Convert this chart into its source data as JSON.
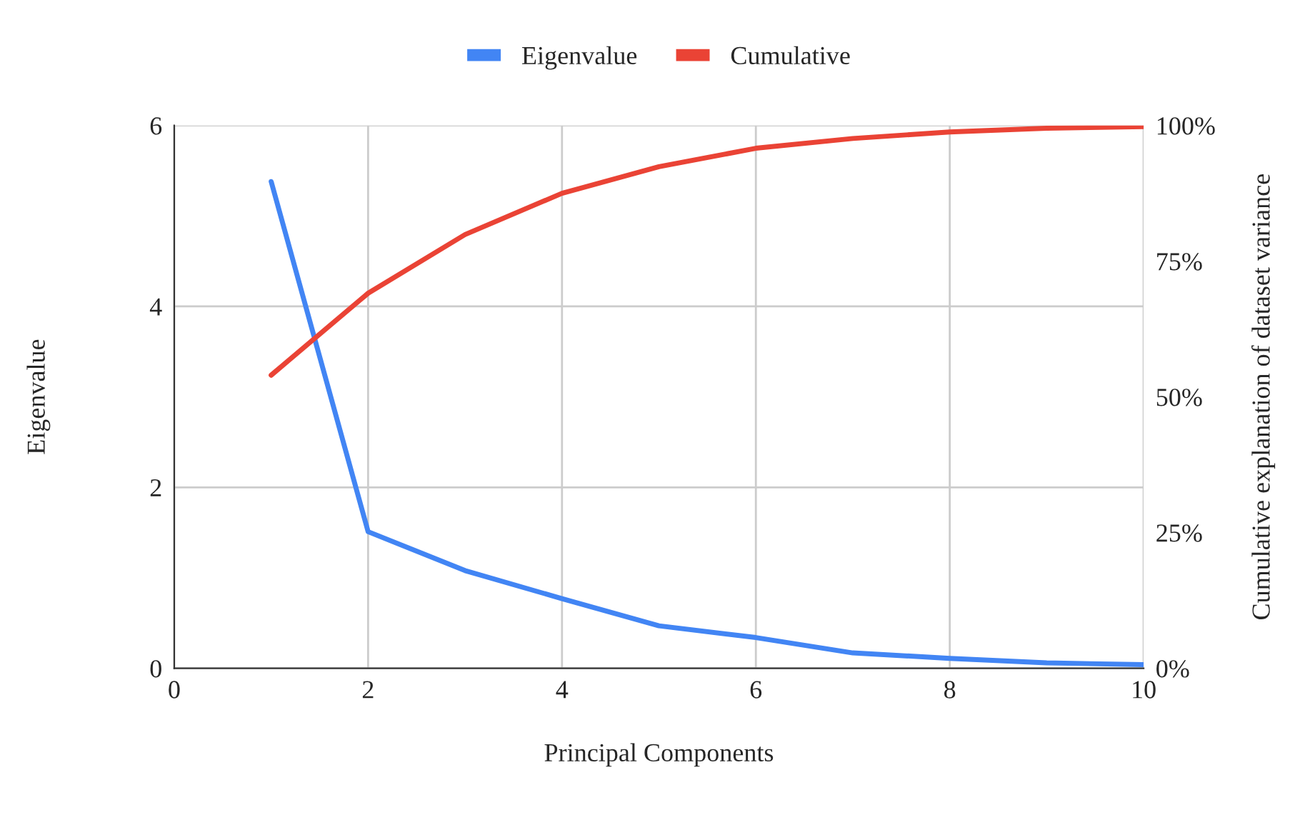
{
  "chart_data": {
    "type": "line",
    "xlabel": "Principal Components",
    "ylabel": "Eigenvalue",
    "y2label": "Cumulative explanation of dataset variance",
    "x": [
      1,
      2,
      3,
      4,
      5,
      6,
      7,
      8,
      9,
      10
    ],
    "series": [
      {
        "name": "Eigenvalue",
        "color": "#4285f4",
        "values": [
          5.38,
          1.51,
          1.08,
          0.77,
          0.47,
          0.34,
          0.17,
          0.11,
          0.06,
          0.04
        ]
      },
      {
        "name": "Cumulative",
        "color": "#ea4335",
        "axis": "y2",
        "values": [
          54.0,
          69.1,
          79.9,
          87.5,
          92.4,
          95.8,
          97.6,
          98.8,
          99.5,
          99.8
        ]
      }
    ],
    "xlim": [
      0,
      10
    ],
    "xticks": [
      0,
      2,
      4,
      6,
      8,
      10
    ],
    "ylim": [
      0,
      6
    ],
    "yticks": [
      0,
      2,
      4,
      6
    ],
    "y2lim": [
      0,
      100
    ],
    "y2ticks": [
      {
        "value": 0,
        "label": "0%"
      },
      {
        "value": 25,
        "label": "25%"
      },
      {
        "value": 50,
        "label": "50%"
      },
      {
        "value": 75,
        "label": "75%"
      },
      {
        "value": 100,
        "label": "100%"
      }
    ],
    "grid": true,
    "legend": "top",
    "marker": "none",
    "line_style": "solid"
  }
}
